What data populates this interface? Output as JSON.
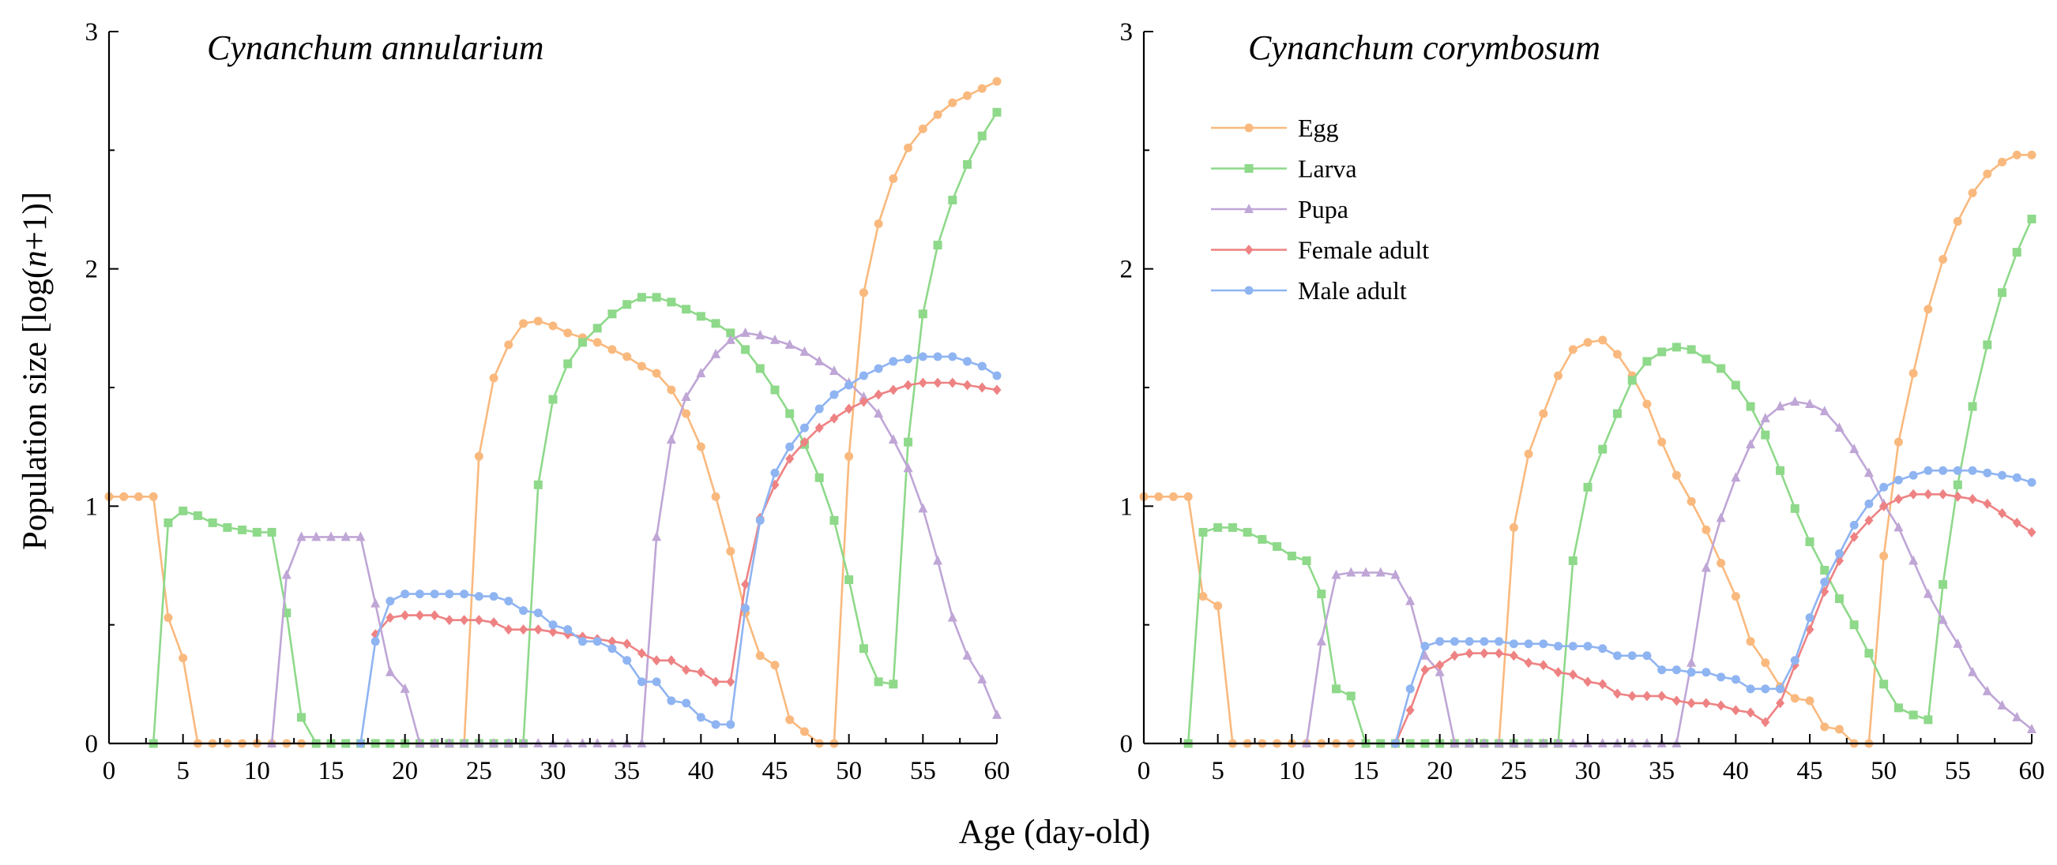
{
  "figure": {
    "xlabel": "Age (day-old)",
    "ylabel_pre": "Population size [log(",
    "ylabel_n": "n",
    "ylabel_post": "+1)]"
  },
  "series_style": {
    "Egg": {
      "color": "#F9B97E",
      "marker": "circle"
    },
    "Larva": {
      "color": "#8ED98A",
      "marker": "square"
    },
    "Pupa": {
      "color": "#BFA6D6",
      "marker": "triangle"
    },
    "Female adult": {
      "color": "#EE8283",
      "marker": "diamond"
    },
    "Male adult": {
      "color": "#8FB4F2",
      "marker": "circle"
    }
  },
  "legend_order": [
    "Egg",
    "Larva",
    "Pupa",
    "Female adult",
    "Male adult"
  ],
  "chart_data": [
    {
      "type": "line",
      "title": "Cynanchum annularium",
      "xlim": [
        0,
        60
      ],
      "ylim": [
        0,
        3
      ],
      "xticks": [
        "0",
        "5",
        "10",
        "15",
        "20",
        "25",
        "30",
        "35",
        "40",
        "45",
        "50",
        "55",
        "60"
      ],
      "yticks": [
        "0",
        "1",
        "2",
        "3"
      ],
      "legend": false,
      "series": [
        {
          "name": "Egg",
          "x": [
            0,
            1,
            2,
            3,
            4,
            5,
            6,
            7,
            8,
            9,
            10,
            11,
            12,
            13,
            14,
            15,
            16,
            17,
            18,
            19,
            20,
            21,
            22,
            23,
            24,
            25,
            26,
            27,
            28,
            29,
            30,
            31,
            32,
            33,
            34,
            35,
            36,
            37,
            38,
            39,
            40,
            41,
            42,
            43,
            44,
            45,
            46,
            47,
            48,
            49,
            50,
            51,
            52,
            53,
            54,
            55,
            56,
            57,
            58,
            59,
            60
          ],
          "y": [
            1.04,
            1.04,
            1.04,
            1.04,
            0.53,
            0.36,
            0,
            0,
            0,
            0,
            0,
            0,
            0,
            0,
            0,
            0,
            0,
            0,
            0,
            0,
            0,
            0,
            0,
            0,
            0,
            1.21,
            1.54,
            1.68,
            1.77,
            1.78,
            1.76,
            1.73,
            1.71,
            1.69,
            1.66,
            1.63,
            1.59,
            1.56,
            1.49,
            1.39,
            1.25,
            1.04,
            0.81,
            0.55,
            0.37,
            0.33,
            0.1,
            0.05,
            0,
            0,
            1.21,
            1.9,
            2.19,
            2.38,
            2.51,
            2.59,
            2.65,
            2.7,
            2.73,
            2.76,
            2.79
          ]
        },
        {
          "name": "Larva",
          "x": [
            3,
            4,
            5,
            6,
            7,
            8,
            9,
            10,
            11,
            12,
            13,
            14,
            15,
            16,
            17,
            18,
            19,
            20,
            21,
            22,
            23,
            24,
            25,
            26,
            27,
            28,
            29,
            30,
            31,
            32,
            33,
            34,
            35,
            36,
            37,
            38,
            39,
            40,
            41,
            42,
            43,
            44,
            45,
            46,
            47,
            48,
            49,
            50,
            51,
            52,
            53,
            54,
            55,
            56,
            57,
            58,
            59,
            60
          ],
          "y": [
            0,
            0.93,
            0.98,
            0.96,
            0.93,
            0.91,
            0.9,
            0.89,
            0.89,
            0.55,
            0.11,
            0,
            0,
            0,
            0,
            0,
            0,
            0,
            0,
            0,
            0,
            0,
            0,
            0,
            0,
            0,
            1.09,
            1.45,
            1.6,
            1.69,
            1.75,
            1.81,
            1.85,
            1.88,
            1.88,
            1.86,
            1.83,
            1.8,
            1.77,
            1.73,
            1.66,
            1.58,
            1.49,
            1.39,
            1.26,
            1.12,
            0.94,
            0.69,
            0.4,
            0.26,
            0.25,
            1.27,
            1.81,
            2.1,
            2.29,
            2.44,
            2.56,
            2.66
          ]
        },
        {
          "name": "Pupa",
          "x": [
            11,
            12,
            13,
            14,
            15,
            16,
            17,
            18,
            19,
            20,
            21,
            22,
            23,
            24,
            25,
            26,
            27,
            28,
            29,
            30,
            31,
            32,
            33,
            34,
            35,
            36,
            37,
            38,
            39,
            40,
            41,
            42,
            43,
            44,
            45,
            46,
            47,
            48,
            49,
            50,
            51,
            52,
            53,
            54,
            55,
            56,
            57,
            58,
            59,
            60
          ],
          "y": [
            0,
            0.71,
            0.87,
            0.87,
            0.87,
            0.87,
            0.87,
            0.59,
            0.3,
            0.23,
            0,
            0,
            0,
            0,
            0,
            0,
            0,
            0,
            0,
            0,
            0,
            0,
            0,
            0,
            0,
            0,
            0.87,
            1.28,
            1.46,
            1.56,
            1.64,
            1.7,
            1.73,
            1.72,
            1.7,
            1.68,
            1.65,
            1.61,
            1.57,
            1.52,
            1.46,
            1.39,
            1.28,
            1.16,
            0.99,
            0.77,
            0.53,
            0.37,
            0.27,
            0.12
          ]
        },
        {
          "name": "Female adult",
          "x": [
            18,
            19,
            20,
            21,
            22,
            23,
            24,
            25,
            26,
            27,
            28,
            29,
            30,
            31,
            32,
            33,
            34,
            35,
            36,
            37,
            38,
            39,
            40,
            41,
            42,
            43,
            44,
            45,
            46,
            47,
            48,
            49,
            50,
            51,
            52,
            53,
            54,
            55,
            56,
            57,
            58,
            59,
            60
          ],
          "y": [
            0.46,
            0.53,
            0.54,
            0.54,
            0.54,
            0.52,
            0.52,
            0.52,
            0.51,
            0.48,
            0.48,
            0.48,
            0.47,
            0.46,
            0.45,
            0.44,
            0.43,
            0.42,
            0.38,
            0.35,
            0.35,
            0.31,
            0.3,
            0.26,
            0.26,
            0.67,
            0.95,
            1.09,
            1.2,
            1.27,
            1.33,
            1.37,
            1.41,
            1.44,
            1.47,
            1.49,
            1.51,
            1.52,
            1.52,
            1.52,
            1.51,
            1.5,
            1.49
          ]
        },
        {
          "name": "Male adult",
          "x": [
            17,
            18,
            19,
            20,
            21,
            22,
            23,
            24,
            25,
            26,
            27,
            28,
            29,
            30,
            31,
            32,
            33,
            34,
            35,
            36,
            37,
            38,
            39,
            40,
            41,
            42,
            43,
            44,
            45,
            46,
            47,
            48,
            49,
            50,
            51,
            52,
            53,
            54,
            55,
            56,
            57,
            58,
            59,
            60
          ],
          "y": [
            0,
            0.43,
            0.6,
            0.63,
            0.63,
            0.63,
            0.63,
            0.63,
            0.62,
            0.62,
            0.6,
            0.56,
            0.55,
            0.5,
            0.48,
            0.43,
            0.43,
            0.4,
            0.35,
            0.26,
            0.26,
            0.18,
            0.17,
            0.11,
            0.08,
            0.08,
            0.57,
            0.94,
            1.14,
            1.25,
            1.33,
            1.41,
            1.47,
            1.51,
            1.55,
            1.58,
            1.61,
            1.62,
            1.63,
            1.63,
            1.63,
            1.61,
            1.59,
            1.55
          ]
        }
      ]
    },
    {
      "type": "line",
      "title": "Cynanchum corymbosum",
      "xlim": [
        0,
        60
      ],
      "ylim": [
        0,
        3
      ],
      "xticks": [
        "0",
        "5",
        "10",
        "15",
        "20",
        "25",
        "30",
        "35",
        "40",
        "45",
        "50",
        "55",
        "60"
      ],
      "yticks": [
        "0",
        "1",
        "2",
        "3"
      ],
      "legend": true,
      "legend_position": "upper-left",
      "series": [
        {
          "name": "Egg",
          "x": [
            0,
            1,
            2,
            3,
            4,
            5,
            6,
            7,
            8,
            9,
            10,
            11,
            12,
            13,
            14,
            15,
            16,
            17,
            18,
            19,
            20,
            21,
            22,
            23,
            24,
            25,
            26,
            27,
            28,
            29,
            30,
            31,
            32,
            33,
            34,
            35,
            36,
            37,
            38,
            39,
            40,
            41,
            42,
            43,
            44,
            45,
            46,
            47,
            48,
            49,
            50,
            51,
            52,
            53,
            54,
            55,
            56,
            57,
            58,
            59,
            60
          ],
          "y": [
            1.04,
            1.04,
            1.04,
            1.04,
            0.62,
            0.58,
            0,
            0,
            0,
            0,
            0,
            0,
            0,
            0,
            0,
            0,
            0,
            0,
            0,
            0,
            0,
            0,
            0,
            0,
            0,
            0.91,
            1.22,
            1.39,
            1.55,
            1.66,
            1.69,
            1.7,
            1.64,
            1.55,
            1.43,
            1.27,
            1.13,
            1.02,
            0.9,
            0.76,
            0.62,
            0.43,
            0.34,
            0.24,
            0.19,
            0.18,
            0.07,
            0.06,
            0,
            0,
            0.79,
            1.27,
            1.56,
            1.83,
            2.04,
            2.2,
            2.32,
            2.4,
            2.45,
            2.48,
            2.48
          ]
        },
        {
          "name": "Larva",
          "x": [
            3,
            4,
            5,
            6,
            7,
            8,
            9,
            10,
            11,
            12,
            13,
            14,
            15,
            16,
            17,
            18,
            19,
            20,
            21,
            22,
            23,
            24,
            25,
            26,
            27,
            28,
            29,
            30,
            31,
            32,
            33,
            34,
            35,
            36,
            37,
            38,
            39,
            40,
            41,
            42,
            43,
            44,
            45,
            46,
            47,
            48,
            49,
            50,
            51,
            52,
            53,
            54,
            55,
            56,
            57,
            58,
            59,
            60
          ],
          "y": [
            0,
            0.89,
            0.91,
            0.91,
            0.89,
            0.86,
            0.83,
            0.79,
            0.77,
            0.63,
            0.23,
            0.2,
            0,
            0,
            0,
            0,
            0,
            0,
            0,
            0,
            0,
            0,
            0,
            0,
            0,
            0,
            0.77,
            1.08,
            1.24,
            1.39,
            1.53,
            1.61,
            1.65,
            1.67,
            1.66,
            1.62,
            1.58,
            1.51,
            1.42,
            1.3,
            1.15,
            0.99,
            0.85,
            0.73,
            0.61,
            0.5,
            0.38,
            0.25,
            0.15,
            0.12,
            0.1,
            0.67,
            1.09,
            1.42,
            1.68,
            1.9,
            2.07,
            2.21
          ]
        },
        {
          "name": "Pupa",
          "x": [
            11,
            12,
            13,
            14,
            15,
            16,
            17,
            18,
            19,
            20,
            21,
            22,
            23,
            24,
            25,
            26,
            27,
            28,
            29,
            30,
            31,
            32,
            33,
            34,
            35,
            36,
            37,
            38,
            39,
            40,
            41,
            42,
            43,
            44,
            45,
            46,
            47,
            48,
            49,
            50,
            51,
            52,
            53,
            54,
            55,
            56,
            57,
            58,
            59,
            60
          ],
          "y": [
            0,
            0.43,
            0.71,
            0.72,
            0.72,
            0.72,
            0.71,
            0.6,
            0.37,
            0.3,
            0,
            0,
            0,
            0,
            0,
            0,
            0,
            0,
            0,
            0,
            0,
            0,
            0,
            0,
            0,
            0,
            0.34,
            0.74,
            0.95,
            1.12,
            1.26,
            1.37,
            1.42,
            1.44,
            1.43,
            1.4,
            1.33,
            1.24,
            1.14,
            1.01,
            0.91,
            0.77,
            0.63,
            0.52,
            0.42,
            0.3,
            0.22,
            0.16,
            0.11,
            0.06
          ]
        },
        {
          "name": "Female adult",
          "x": [
            17,
            18,
            19,
            20,
            21,
            22,
            23,
            24,
            25,
            26,
            27,
            28,
            29,
            30,
            31,
            32,
            33,
            34,
            35,
            36,
            37,
            38,
            39,
            40,
            41,
            42,
            43,
            44,
            45,
            46,
            47,
            48,
            49,
            50,
            51,
            52,
            53,
            54,
            55,
            56,
            57,
            58,
            59,
            60
          ],
          "y": [
            0,
            0.14,
            0.31,
            0.33,
            0.37,
            0.38,
            0.38,
            0.38,
            0.37,
            0.34,
            0.33,
            0.3,
            0.29,
            0.26,
            0.25,
            0.21,
            0.2,
            0.2,
            0.2,
            0.18,
            0.17,
            0.17,
            0.16,
            0.14,
            0.13,
            0.09,
            0.17,
            0.33,
            0.48,
            0.64,
            0.77,
            0.87,
            0.94,
            1.0,
            1.03,
            1.05,
            1.05,
            1.05,
            1.04,
            1.03,
            1.01,
            0.97,
            0.93,
            0.89
          ]
        },
        {
          "name": "Male adult",
          "x": [
            17,
            18,
            19,
            20,
            21,
            22,
            23,
            24,
            25,
            26,
            27,
            28,
            29,
            30,
            31,
            32,
            33,
            34,
            35,
            36,
            37,
            38,
            39,
            40,
            41,
            42,
            43,
            44,
            45,
            46,
            47,
            48,
            49,
            50,
            51,
            52,
            53,
            54,
            55,
            56,
            57,
            58,
            59,
            60
          ],
          "y": [
            0,
            0.23,
            0.41,
            0.43,
            0.43,
            0.43,
            0.43,
            0.43,
            0.42,
            0.42,
            0.42,
            0.41,
            0.41,
            0.41,
            0.4,
            0.37,
            0.37,
            0.37,
            0.31,
            0.31,
            0.3,
            0.3,
            0.28,
            0.27,
            0.23,
            0.23,
            0.23,
            0.35,
            0.53,
            0.68,
            0.8,
            0.92,
            1.01,
            1.08,
            1.11,
            1.13,
            1.15,
            1.15,
            1.15,
            1.15,
            1.14,
            1.13,
            1.12,
            1.1
          ]
        }
      ]
    }
  ]
}
